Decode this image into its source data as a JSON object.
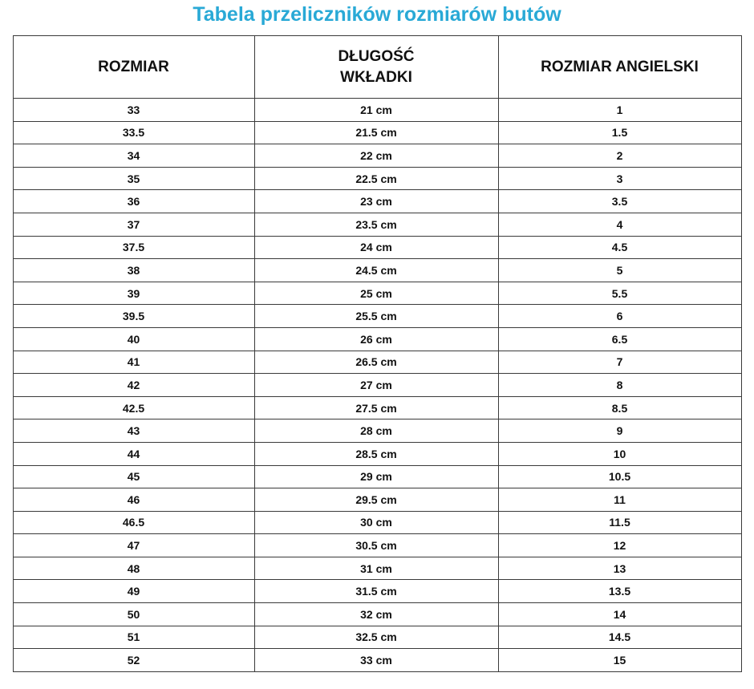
{
  "page": {
    "title": "Tabela przeliczników rozmiarów butów",
    "title_color": "#29a9d6"
  },
  "table": {
    "headers": {
      "size": "ROZMIAR",
      "insole_length": "DŁUGOŚĆ\nWKŁADKI",
      "english_size": "ROZMIAR ANGIELSKI"
    },
    "rows": [
      [
        "33",
        "21 cm",
        "1"
      ],
      [
        "33.5",
        "21.5 cm",
        "1.5"
      ],
      [
        "34",
        "22 cm",
        "2"
      ],
      [
        "35",
        "22.5 cm",
        "3"
      ],
      [
        "36",
        "23 cm",
        "3.5"
      ],
      [
        "37",
        "23.5 cm",
        "4"
      ],
      [
        "37.5",
        "24 cm",
        "4.5"
      ],
      [
        "38",
        "24.5 cm",
        "5"
      ],
      [
        "39",
        "25 cm",
        "5.5"
      ],
      [
        "39.5",
        "25.5 cm",
        "6"
      ],
      [
        "40",
        "26 cm",
        "6.5"
      ],
      [
        "41",
        "26.5 cm",
        "7"
      ],
      [
        "42",
        "27 cm",
        "8"
      ],
      [
        "42.5",
        "27.5 cm",
        "8.5"
      ],
      [
        "43",
        "28 cm",
        "9"
      ],
      [
        "44",
        "28.5 cm",
        "10"
      ],
      [
        "45",
        "29 cm",
        "10.5"
      ],
      [
        "46",
        "29.5 cm",
        "11"
      ],
      [
        "46.5",
        "30 cm",
        "11.5"
      ],
      [
        "47",
        "30.5 cm",
        "12"
      ],
      [
        "48",
        "31 cm",
        "13"
      ],
      [
        "49",
        "31.5 cm",
        "13.5"
      ],
      [
        "50",
        "32 cm",
        "14"
      ],
      [
        "51",
        "32.5 cm",
        "14.5"
      ],
      [
        "52",
        "33 cm",
        "15"
      ]
    ]
  }
}
